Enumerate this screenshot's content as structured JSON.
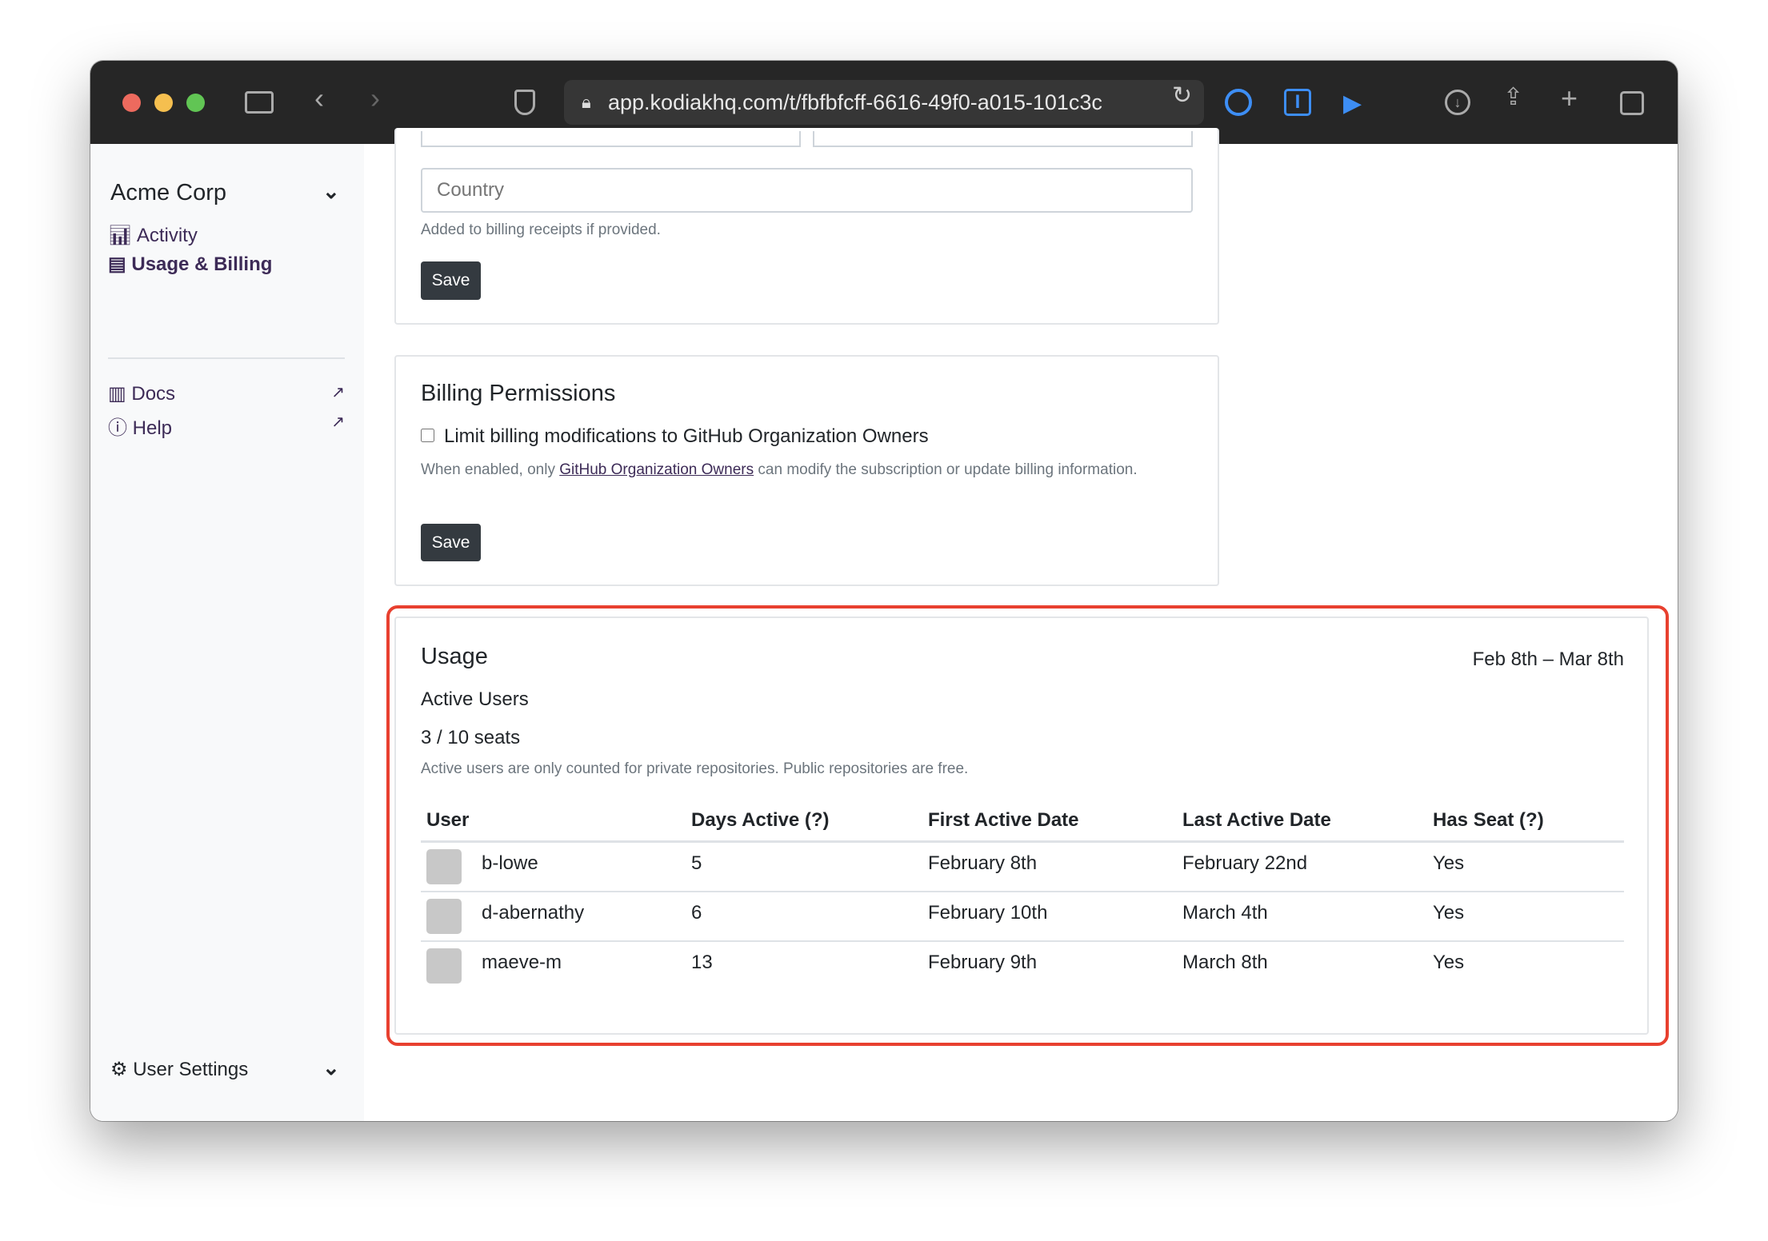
{
  "browser": {
    "url": "app.kodiakhq.com/t/fbfbfcff-6616-49f0-a015-101c3c"
  },
  "sidebar": {
    "org": "Acme Corp",
    "items": [
      {
        "label": "Activity",
        "icon": "bar-chart-icon"
      },
      {
        "label": "Usage & Billing",
        "icon": "credit-card-icon",
        "active": true
      }
    ],
    "links": [
      {
        "label": "Docs",
        "icon": "book-icon"
      },
      {
        "label": "Help",
        "icon": "question-circle-icon"
      }
    ],
    "user_settings": "User Settings"
  },
  "address_card": {
    "country_placeholder": "Country",
    "hint": "Added to billing receipts if provided.",
    "save": "Save"
  },
  "permissions": {
    "title": "Billing Permissions",
    "checkbox_label": "Limit billing modifications to GitHub Organization Owners",
    "checked": false,
    "desc_before": "When enabled, only ",
    "desc_link": "GitHub Organization Owners",
    "desc_after": " can modify the subscription or update billing information.",
    "save": "Save"
  },
  "usage": {
    "title": "Usage",
    "date_range": "Feb 8th – Mar 8th",
    "subtitle": "Active Users",
    "seats": "3 / 10 seats",
    "note": "Active users are only counted for private repositories. Public repositories are free.",
    "columns": [
      "User",
      "Days Active (?)",
      "First Active Date",
      "Last Active Date",
      "Has Seat (?)"
    ],
    "rows": [
      [
        "b-lowe",
        "5",
        "February 8th",
        "February 22nd",
        "Yes"
      ],
      [
        "d-abernathy",
        "6",
        "February 10th",
        "March 4th",
        "Yes"
      ],
      [
        "maeve-m",
        "13",
        "February 9th",
        "March 8th",
        "Yes"
      ]
    ]
  },
  "colors": {
    "highlight": "#e8402f",
    "accent": "#3d2b57",
    "button": "#343a40"
  }
}
